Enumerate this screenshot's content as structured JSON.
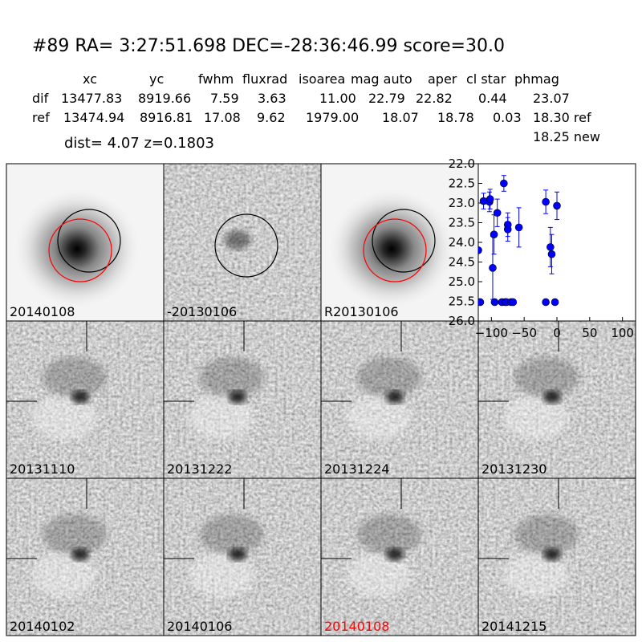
{
  "header": {
    "title": "#89   RA= 3:27:51.698 DEC=-28:36:46.99      score=30.0",
    "dist": "dist=  4.07      z=0.1803"
  },
  "table": {
    "columns": [
      "xc",
      "yc",
      "fwhm",
      "fluxrad",
      "isoarea",
      "mag auto",
      "aper",
      "cl star",
      "phmag"
    ],
    "rows": [
      {
        "label": "dif",
        "cells": [
          "13477.83",
          "8919.66",
          "7.59",
          "3.63",
          "11.00",
          "22.79",
          "22.82",
          "0.44",
          "23.07"
        ]
      },
      {
        "label": "ref",
        "cells": [
          "13474.94",
          "8916.81",
          "17.08",
          "9.62",
          "1979.00",
          "18.07",
          "18.78",
          "0.03",
          "18.30 ref"
        ]
      }
    ],
    "note": "18.25 new"
  },
  "thumbnails": [
    "20140108",
    "-20130106",
    "R20130106",
    "20131110",
    "20131222",
    "20131224",
    "20131230",
    "20140102",
    "20140106",
    "20140108",
    "20141215"
  ],
  "chart_data": {
    "type": "errorbar",
    "color": "#0000ff",
    "x": [
      -120,
      -117,
      -112,
      -103,
      -102,
      -98,
      -96,
      -95,
      -91,
      -84,
      -81,
      -79,
      -77,
      -75,
      -75,
      -70,
      -67,
      -58,
      -17,
      -17,
      -10,
      -8,
      -3,
      0
    ],
    "values": [
      24.2,
      25.52,
      22.95,
      22.97,
      22.9,
      24.65,
      23.8,
      25.52,
      23.25,
      25.52,
      22.5,
      25.52,
      25.52,
      23.55,
      23.67,
      25.52,
      25.52,
      23.62,
      22.97,
      25.52,
      24.12,
      24.3,
      25.52,
      23.07
    ],
    "errors": [
      null,
      null,
      0.2,
      0.25,
      0.25,
      0.8,
      0.5,
      null,
      0.35,
      null,
      0.2,
      null,
      null,
      0.3,
      0.3,
      null,
      null,
      0.5,
      0.3,
      null,
      0.5,
      0.5,
      null,
      0.35
    ],
    "xlim": [
      -120,
      120
    ],
    "ylim": [
      22.0,
      26.0
    ],
    "y_inverted": true,
    "xticks": [
      {
        "value": -100,
        "label": "−100"
      },
      {
        "value": -50,
        "label": "−50"
      },
      0,
      50,
      100
    ],
    "yticks": [
      {
        "value": 22,
        "label": "22.0"
      },
      22.5,
      {
        "value": 23,
        "label": "23.0"
      },
      23.5,
      {
        "value": 24,
        "label": "24.0"
      },
      24.5,
      {
        "value": 25,
        "label": "25.0"
      },
      25.5,
      {
        "value": 26,
        "label": "26.0"
      }
    ]
  }
}
